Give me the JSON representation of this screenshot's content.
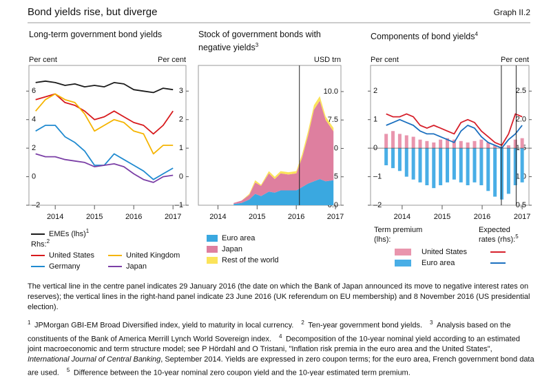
{
  "header": {
    "title": "Bond yields rise, but diverge",
    "label": "Graph II.2"
  },
  "chart_data": [
    {
      "type": "line",
      "title": "Long-term government bond yields",
      "y_label": "Per cent",
      "y2_label": "Per cent",
      "x": [
        2013.5,
        2013.75,
        2014.0,
        2014.25,
        2014.5,
        2014.75,
        2015.0,
        2015.25,
        2015.5,
        2015.75,
        2016.0,
        2016.25,
        2016.5,
        2016.75,
        2017.0
      ],
      "xlim": [
        2013.33,
        2017.33
      ],
      "xticks": [
        2014,
        2015,
        2016,
        2017
      ],
      "ylim": [
        -2,
        7.8
      ],
      "yticks": [
        {
          "value": -2,
          "label": "–2"
        },
        0,
        2,
        4,
        6
      ],
      "y2lim": [
        -1,
        3.9
      ],
      "y2ticks": [
        {
          "value": -1,
          "label": "–1"
        },
        0,
        1,
        2,
        3
      ],
      "legend_heading": "Rhs:",
      "legend_heading_note": "2",
      "series": [
        {
          "name": "EMEs (lhs)",
          "note": "1",
          "color": "#1a1a1a",
          "values": [
            6.6,
            6.7,
            6.6,
            6.4,
            6.5,
            6.3,
            6.4,
            6.3,
            6.6,
            6.5,
            6.1,
            6.0,
            5.9,
            6.2,
            6.1
          ]
        },
        {
          "name": "United States",
          "color": "#d7191c",
          "axis": "y2",
          "values": [
            2.7,
            2.8,
            2.9,
            2.6,
            2.5,
            2.3,
            2.0,
            2.1,
            2.3,
            2.1,
            1.9,
            1.8,
            1.5,
            1.8,
            2.3
          ]
        },
        {
          "name": "United Kingdom",
          "color": "#f5b400",
          "axis": "y2",
          "values": [
            2.3,
            2.7,
            2.9,
            2.7,
            2.6,
            2.2,
            1.6,
            1.8,
            2.0,
            1.9,
            1.6,
            1.5,
            0.8,
            1.1,
            1.1
          ]
        },
        {
          "name": "Germany",
          "color": "#1f8ad0",
          "axis": "y2",
          "values": [
            1.6,
            1.8,
            1.8,
            1.4,
            1.2,
            0.9,
            0.4,
            0.4,
            0.8,
            0.6,
            0.4,
            0.2,
            -0.1,
            0.1,
            0.3
          ]
        },
        {
          "name": "Japan",
          "color": "#7b3fa6",
          "axis": "y2",
          "values": [
            0.8,
            0.7,
            0.7,
            0.6,
            0.55,
            0.5,
            0.35,
            0.4,
            0.45,
            0.35,
            0.1,
            -0.1,
            -0.2,
            0.0,
            0.05
          ]
        }
      ]
    },
    {
      "type": "area",
      "title": "Stock of government bonds with negative yields",
      "title_note": "3",
      "y_label": "USD trn",
      "axis_side": "right",
      "x": [
        2014.4,
        2014.6,
        2014.8,
        2014.95,
        2015.1,
        2015.3,
        2015.45,
        2015.6,
        2015.8,
        2016.0,
        2016.15,
        2016.3,
        2016.45,
        2016.6,
        2016.75,
        2016.95
      ],
      "xlim": [
        2013.5,
        2017.14
      ],
      "xticks": [
        2014,
        2015,
        2016,
        2017
      ],
      "ylim": [
        0,
        12.3
      ],
      "yticks": [
        {
          "value": 0,
          "label": "0.0"
        },
        2.5,
        {
          "value": 5,
          "label": "5.0"
        },
        7.5,
        {
          "value": 10,
          "label": "10.0"
        }
      ],
      "vlines": [
        2016.08
      ],
      "series": [
        {
          "name": "Euro area",
          "color": "#3aa8e0",
          "values": [
            0.1,
            0.2,
            0.5,
            1.0,
            0.8,
            1.2,
            1.1,
            1.3,
            1.3,
            1.3,
            1.6,
            1.9,
            2.1,
            2.3,
            2.1,
            2.2
          ]
        },
        {
          "name": "Japan",
          "color": "#de7f9f",
          "values": [
            0.1,
            0.2,
            0.4,
            1.0,
            0.9,
            1.6,
            1.2,
            1.5,
            1.4,
            1.5,
            2.6,
            4.2,
            6.3,
            6.9,
            5.4,
            4.3
          ]
        },
        {
          "name": "Rest of the world",
          "color": "#fbe35a",
          "values": [
            0.0,
            0.0,
            0.1,
            0.2,
            0.1,
            0.2,
            0.2,
            0.2,
            0.2,
            0.2,
            0.3,
            0.4,
            0.4,
            0.4,
            0.3,
            0.3
          ]
        }
      ]
    },
    {
      "type": "combo",
      "title": "Components of bond yields",
      "title_note": "4",
      "y_label": "Per cent",
      "y2_label": "Per cent",
      "x": [
        2013.6,
        2013.77,
        2013.94,
        2014.11,
        2014.28,
        2014.45,
        2014.62,
        2014.79,
        2014.96,
        2015.13,
        2015.3,
        2015.47,
        2015.64,
        2015.81,
        2015.98,
        2016.15,
        2016.32,
        2016.49,
        2016.66,
        2016.83,
        2017.0
      ],
      "xlim": [
        2013.21,
        2017.17
      ],
      "xticks": [
        2014,
        2015,
        2016,
        2017
      ],
      "ylim": [
        -2,
        2.9
      ],
      "yticks": [
        {
          "value": -2,
          "label": "–2"
        },
        {
          "value": -1,
          "label": "–1"
        },
        0,
        1,
        2
      ],
      "y2lim": [
        0.5,
        2.95
      ],
      "y2ticks": [
        0.5,
        {
          "value": 1,
          "label": "1.0"
        },
        1.5,
        {
          "value": 2,
          "label": "2.0"
        },
        2.5
      ],
      "vlines": [
        2016.48,
        2016.85
      ],
      "legend_titles": [
        {
          "lines": [
            "Term premium",
            "(lhs):"
          ]
        },
        {
          "lines": [
            "Expected",
            "rates (rhs):"
          ],
          "note": "5"
        }
      ],
      "series": [
        {
          "name": "United States",
          "kind": "bar",
          "color": "#e995ad",
          "values": [
            0.5,
            0.6,
            0.5,
            0.45,
            0.4,
            0.3,
            0.25,
            0.2,
            0.3,
            0.35,
            0.3,
            0.25,
            0.2,
            0.25,
            0.3,
            0.2,
            0.1,
            0.05,
            0.1,
            0.3,
            0.35
          ]
        },
        {
          "name": "Euro area",
          "kind": "bar",
          "color": "#49aee6",
          "values": [
            -0.6,
            -0.7,
            -0.8,
            -1.0,
            -1.1,
            -1.2,
            -1.3,
            -1.4,
            -1.3,
            -1.2,
            -1.1,
            -1.2,
            -1.3,
            -1.2,
            -1.3,
            -1.5,
            -1.7,
            -1.8,
            -1.6,
            -1.3,
            -1.2
          ]
        },
        {
          "kind": "line",
          "axis": "y2",
          "color": "#d61f2a",
          "values": [
            2.1,
            2.05,
            2.05,
            2.1,
            2.05,
            1.9,
            1.85,
            1.9,
            1.85,
            1.8,
            1.75,
            1.95,
            2.0,
            1.95,
            1.8,
            1.7,
            1.6,
            1.55,
            1.75,
            2.1,
            2.05
          ]
        },
        {
          "kind": "line",
          "axis": "y2",
          "color": "#1a6fbf",
          "values": [
            1.9,
            1.95,
            2.0,
            1.95,
            1.9,
            1.8,
            1.75,
            1.75,
            1.7,
            1.65,
            1.6,
            1.8,
            1.9,
            1.85,
            1.7,
            1.6,
            1.55,
            1.5,
            1.65,
            1.75,
            1.9
          ]
        }
      ]
    }
  ],
  "note": "The vertical line in the centre panel indicates 29 January 2016 (the date on which the Bank of Japan announced its move to negative interest rates on reserves); the vertical lines in the right-hand panel indicate 23 June 2016 (UK referendum on EU membership) and 8 November 2016 (US presidential election).",
  "footnotes": [
    {
      "marker": "1",
      "text": "JPMorgan GBI-EM Broad Diversified index, yield to maturity in local currency."
    },
    {
      "marker": "2",
      "text": "Ten-year government bond yields."
    },
    {
      "marker": "3",
      "text": "Analysis based on the constituents of the Bank of America Merrill Lynch World Sovereign index."
    },
    {
      "marker": "4",
      "text": "Decomposition of the 10-year nominal yield according to an estimated joint macroeconomic and term structure model; see P Hördahl and O Tristani, \"Inflation risk premia in the euro area and the United States\", ",
      "italic": "International Journal of Central Banking",
      "text_after": ", September 2014. Yields are expressed in zero coupon terms; for the euro area, French government bond data are used."
    },
    {
      "marker": "5",
      "text": "Difference between the 10-year nominal zero coupon yield and the 10-year estimated term premium."
    }
  ]
}
